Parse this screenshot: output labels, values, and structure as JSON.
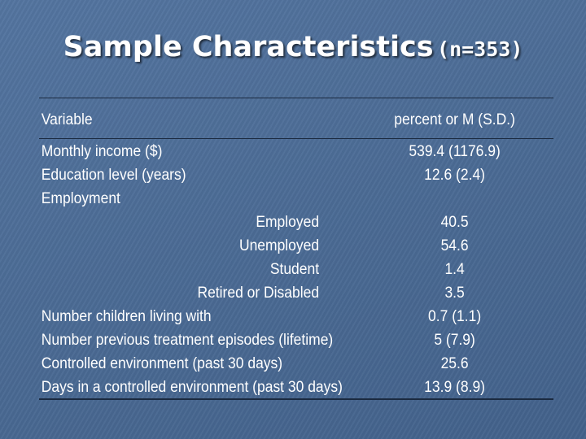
{
  "title": {
    "main": "Sample Characteristics",
    "n": "(n=353)"
  },
  "table": {
    "headers": [
      "Variable",
      "percent or M (S.D.)"
    ],
    "rows": [
      {
        "label": "Monthly income ($)",
        "value": "539.4 (1176.9)",
        "indent": false
      },
      {
        "label": "Education level (years)",
        "value": "12.6 (2.4)",
        "indent": false
      },
      {
        "label": "Employment",
        "value": "",
        "indent": false
      },
      {
        "label": "Employed",
        "value": "40.5",
        "indent": true
      },
      {
        "label": "Unemployed",
        "value": "54.6",
        "indent": true
      },
      {
        "label": "Student",
        "value": "1.4",
        "indent": true
      },
      {
        "label": "Retired or Disabled",
        "value": "3.5",
        "indent": true
      },
      {
        "label": "Number children living with",
        "value": "0.7 (1.1)",
        "indent": false
      },
      {
        "label": "Number previous treatment episodes (lifetime)",
        "value": "5 (7.9)",
        "indent": false
      },
      {
        "label": "Controlled environment (past 30 days)",
        "value": "25.6",
        "indent": false
      },
      {
        "label": "Days in a controlled environment (past 30 days)",
        "value": "13.9 (8.9)",
        "indent": false
      }
    ]
  }
}
